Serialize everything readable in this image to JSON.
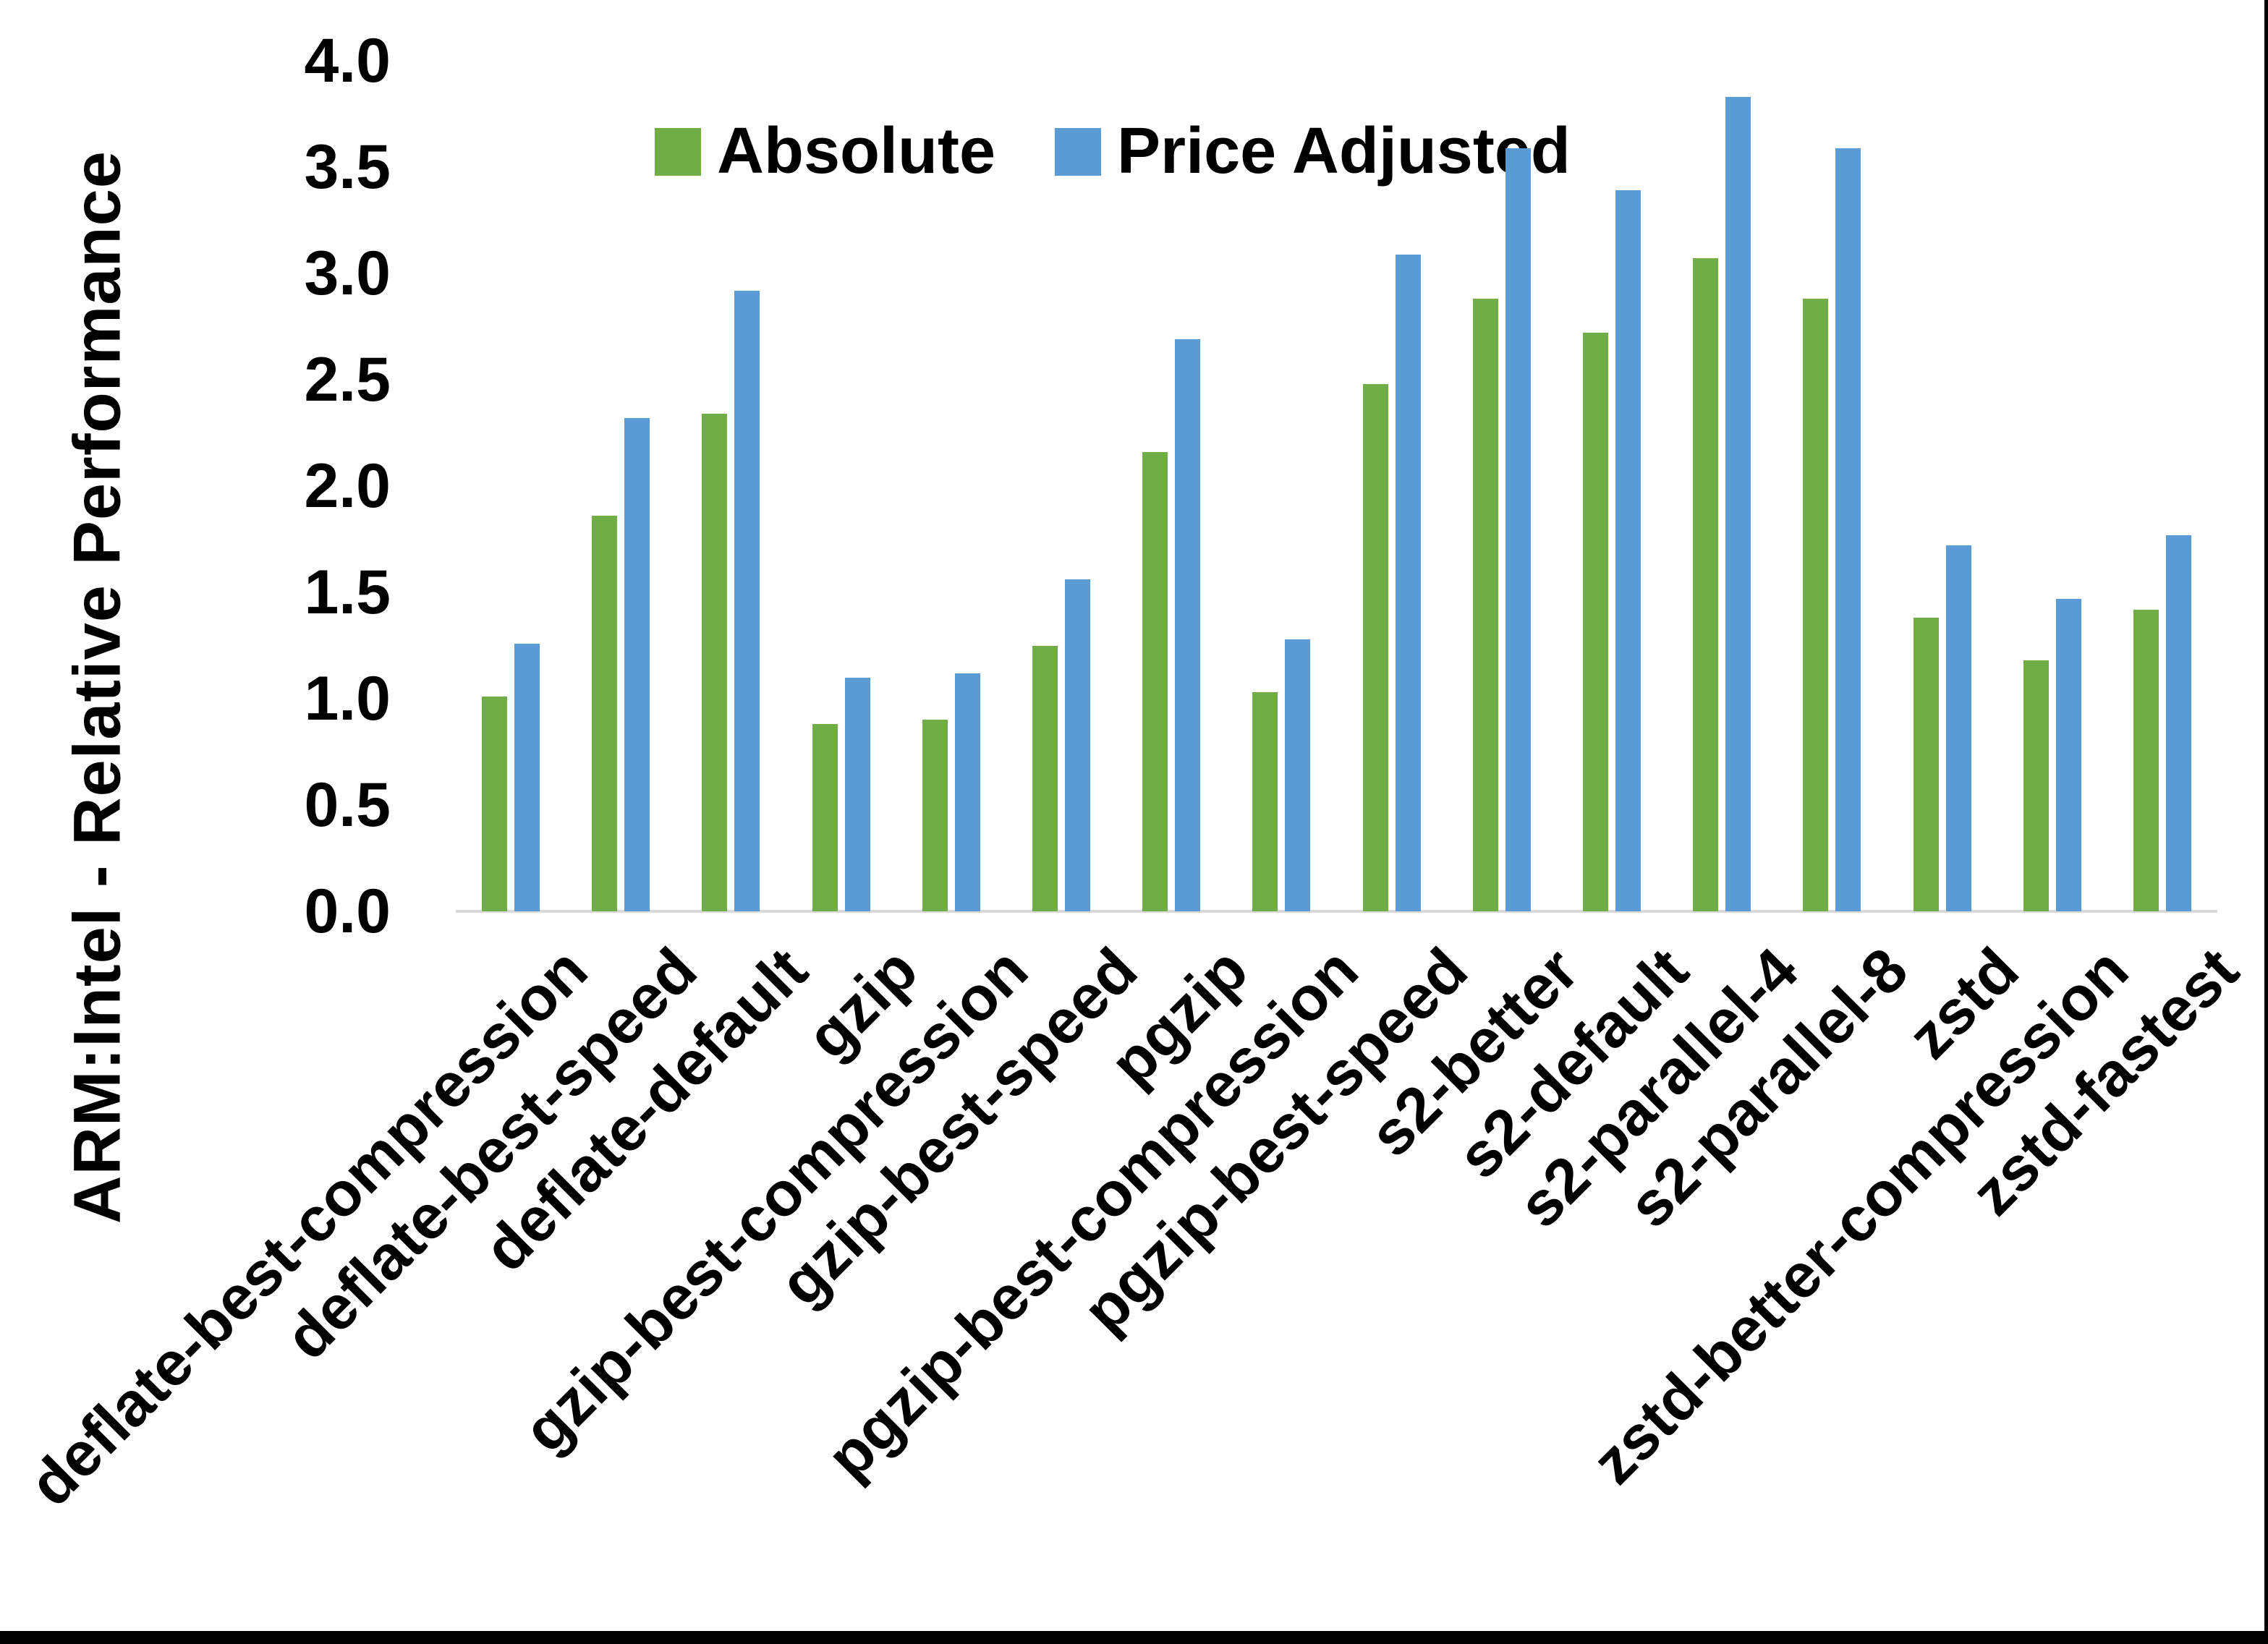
{
  "chart_data": {
    "type": "bar",
    "title": "",
    "xlabel": "",
    "ylabel": "ARM:Intel - Relative Performance",
    "ylim": [
      0.0,
      4.0
    ],
    "y_tick_step": 0.5,
    "y_ticks": [
      "0.0",
      "0.5",
      "1.0",
      "1.5",
      "2.0",
      "2.5",
      "3.0",
      "3.5",
      "4.0"
    ],
    "grid": false,
    "legend_position": "top-center",
    "categories": [
      "deflate-best-compression",
      "deflate-best-speed",
      "deflate-default",
      "gzip",
      "gzip-best-compression",
      "gzip-best-speed",
      "pgzip",
      "pgzip-best-compression",
      "pgzip-best-speed",
      "s2-better",
      "s2-default",
      "s2-parallel-4",
      "s2-parallel-8",
      "zstd",
      "zstd-better-compression",
      "zstd-fastest"
    ],
    "series": [
      {
        "name": "Absolute",
        "color": "#70AD47",
        "values": [
          1.01,
          1.86,
          2.34,
          0.88,
          0.9,
          1.25,
          2.16,
          1.03,
          2.48,
          2.88,
          2.72,
          3.07,
          2.88,
          1.38,
          1.18,
          1.42
        ]
      },
      {
        "name": "Price Adjusted",
        "color": "#5B9BD5",
        "values": [
          1.26,
          2.32,
          2.92,
          1.1,
          1.12,
          1.56,
          2.69,
          1.28,
          3.09,
          3.59,
          3.39,
          3.83,
          3.59,
          1.72,
          1.47,
          1.77
        ]
      }
    ],
    "colors": {
      "axis_line": "#D9D9D9",
      "text": "#000000",
      "background": "#FFFFFF",
      "frame": "#000000"
    }
  }
}
